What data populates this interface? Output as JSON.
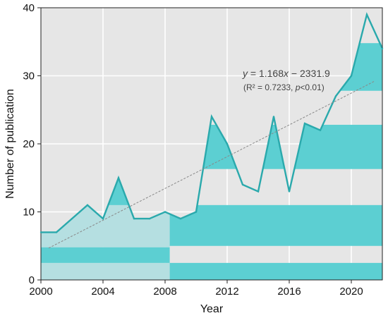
{
  "chart_data": {
    "type": "area",
    "xlabel": "Year",
    "ylabel": "Number of publication",
    "xlim": [
      2000,
      2022
    ],
    "ylim": [
      0,
      40
    ],
    "x_ticks": [
      2000,
      2004,
      2008,
      2012,
      2016,
      2020
    ],
    "y_ticks": [
      0,
      10,
      20,
      30,
      40
    ],
    "grid": true,
    "series": [
      {
        "x": [
          2000,
          2001,
          2002,
          2003,
          2004,
          2005,
          2006,
          2007,
          2008,
          2009,
          2010,
          2011,
          2012,
          2013,
          2014,
          2015,
          2016,
          2017,
          2018,
          2019,
          2020,
          2021,
          2022
        ],
        "values": [
          7,
          7,
          9,
          11,
          9,
          15,
          9,
          9,
          10,
          9,
          10,
          24,
          20,
          14,
          13,
          24,
          13,
          23,
          22,
          27,
          30,
          39,
          34
        ]
      }
    ],
    "trendline": {
      "slope": 1.168,
      "intercept": -2331.9,
      "x_range": [
        2000.5,
        2021.5
      ],
      "equation_y": "y",
      "equation_rest": " = 1.168",
      "equation_x": "x",
      "equation_tail": " − 2331.9",
      "r2_prefix": "(R² = 0.7233, ",
      "r2_p": "p",
      "r2_suffix": "<0.01)"
    },
    "colors": {
      "fill": "#5ccfd2",
      "fill_light": "#b5dfe1",
      "line": "#2aa9ac",
      "background": "#e6e6e6",
      "grid": "#ffffff",
      "trend": "#888888"
    }
  }
}
